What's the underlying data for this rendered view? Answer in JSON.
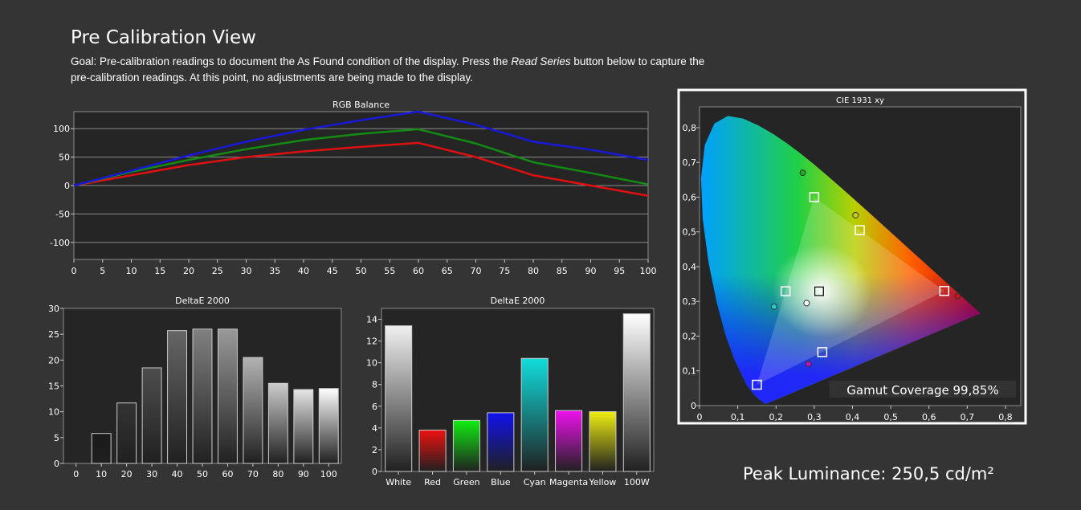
{
  "page": {
    "title": "Pre Calibration View",
    "goal_prefix": "Goal: Pre-calibration readings to document the As Found condition of the display. Press the ",
    "goal_button": "Read Series",
    "goal_suffix": " button below to capture the pre-calibration readings. At this point, no adjustments are being made to the display.",
    "peak_luminance": "Peak Luminance: 250,5 cd/m²"
  },
  "chart_data": [
    {
      "id": "rgb",
      "type": "line",
      "title": "RGB Balance",
      "x": [
        0,
        10,
        20,
        30,
        40,
        50,
        60,
        70,
        80,
        90,
        100
      ],
      "xticks": [
        0,
        5,
        10,
        15,
        20,
        25,
        30,
        35,
        40,
        45,
        50,
        55,
        60,
        65,
        70,
        75,
        80,
        85,
        90,
        95,
        100
      ],
      "xlim": [
        0,
        100
      ],
      "ylim": [
        -130,
        130
      ],
      "yticks": [
        100,
        50,
        0,
        -50,
        -100
      ],
      "grid": true,
      "series": [
        {
          "values": [
            0,
            18,
            36,
            50,
            60,
            68,
            75,
            50,
            18,
            0,
            -18
          ],
          "color": "#e01010"
        },
        {
          "values": [
            0,
            24,
            45,
            64,
            80,
            91,
            99,
            74,
            41,
            22,
            2
          ],
          "color": "#138a13"
        },
        {
          "values": [
            0,
            26,
            53,
            77,
            98,
            115,
            130,
            107,
            77,
            63,
            45
          ],
          "color": "#1818d8"
        }
      ]
    },
    {
      "id": "de_gray",
      "type": "bar",
      "title": "DeltaE 2000",
      "categories": [
        "0",
        "10",
        "20",
        "30",
        "40",
        "50",
        "60",
        "70",
        "80",
        "90",
        "100"
      ],
      "values": [
        0,
        5.8,
        11.7,
        18.5,
        25.7,
        26.0,
        26.0,
        20.5,
        15.5,
        14.3,
        14.5
      ],
      "ylim": [
        0,
        30
      ],
      "yticks": [
        0,
        5,
        10,
        15,
        20,
        25,
        30
      ],
      "colors": [
        "#000000",
        "#1a1a1a",
        "#333333",
        "#4d4d4d",
        "#666666",
        "#808080",
        "#999999",
        "#b3b3b3",
        "#cccccc",
        "#e6e6e6",
        "#ffffff"
      ]
    },
    {
      "id": "de_color",
      "type": "bar",
      "title": "DeltaE 2000",
      "categories": [
        "White",
        "Red",
        "Green",
        "Blue",
        "Cyan",
        "Magenta",
        "Yellow",
        "100W"
      ],
      "values": [
        13.4,
        3.8,
        4.7,
        5.4,
        10.4,
        5.6,
        5.5,
        14.5
      ],
      "ylim": [
        0,
        15
      ],
      "yticks": [
        0,
        2,
        4,
        6,
        8,
        10,
        12,
        14
      ],
      "colors": [
        "#f0f0f0",
        "#ee1111",
        "#11ee11",
        "#1111ee",
        "#11dddd",
        "#ee11ee",
        "#eeee11",
        "#ffffff"
      ]
    },
    {
      "id": "cie",
      "type": "scatter",
      "title": "CIE 1931 xy",
      "xlim": [
        0,
        0.84
      ],
      "ylim": [
        0,
        0.86
      ],
      "xticks": [
        "0",
        "0,1",
        "0,2",
        "0,3",
        "0,4",
        "0,5",
        "0,6",
        "0,7",
        "0,8"
      ],
      "yticks": [
        "0",
        "0,1",
        "0,2",
        "0,3",
        "0,4",
        "0,5",
        "0,6",
        "0,7",
        "0,8"
      ],
      "gamut_coverage": "Gamut Coverage 99,85%",
      "targets": [
        {
          "name": "Red",
          "x": 0.64,
          "y": 0.33
        },
        {
          "name": "Green",
          "x": 0.3,
          "y": 0.6
        },
        {
          "name": "Blue",
          "x": 0.15,
          "y": 0.06
        },
        {
          "name": "Cyan",
          "x": 0.225,
          "y": 0.329
        },
        {
          "name": "Magenta",
          "x": 0.321,
          "y": 0.154
        },
        {
          "name": "Yellow",
          "x": 0.419,
          "y": 0.505
        },
        {
          "name": "White",
          "x": 0.3127,
          "y": 0.329
        }
      ],
      "measured": [
        {
          "name": "Red",
          "x": 0.675,
          "y": 0.315,
          "color": "#cc1111"
        },
        {
          "name": "Green",
          "x": 0.27,
          "y": 0.67,
          "color": "#22aa22"
        },
        {
          "name": "Cyan",
          "x": 0.195,
          "y": 0.285,
          "color": "#22cccc"
        },
        {
          "name": "Magenta",
          "x": 0.285,
          "y": 0.12,
          "color": "#bb11bb"
        },
        {
          "name": "Yellow",
          "x": 0.408,
          "y": 0.548,
          "color": "#cccc22"
        },
        {
          "name": "White",
          "x": 0.28,
          "y": 0.295,
          "color": "#ffffff"
        }
      ]
    }
  ]
}
